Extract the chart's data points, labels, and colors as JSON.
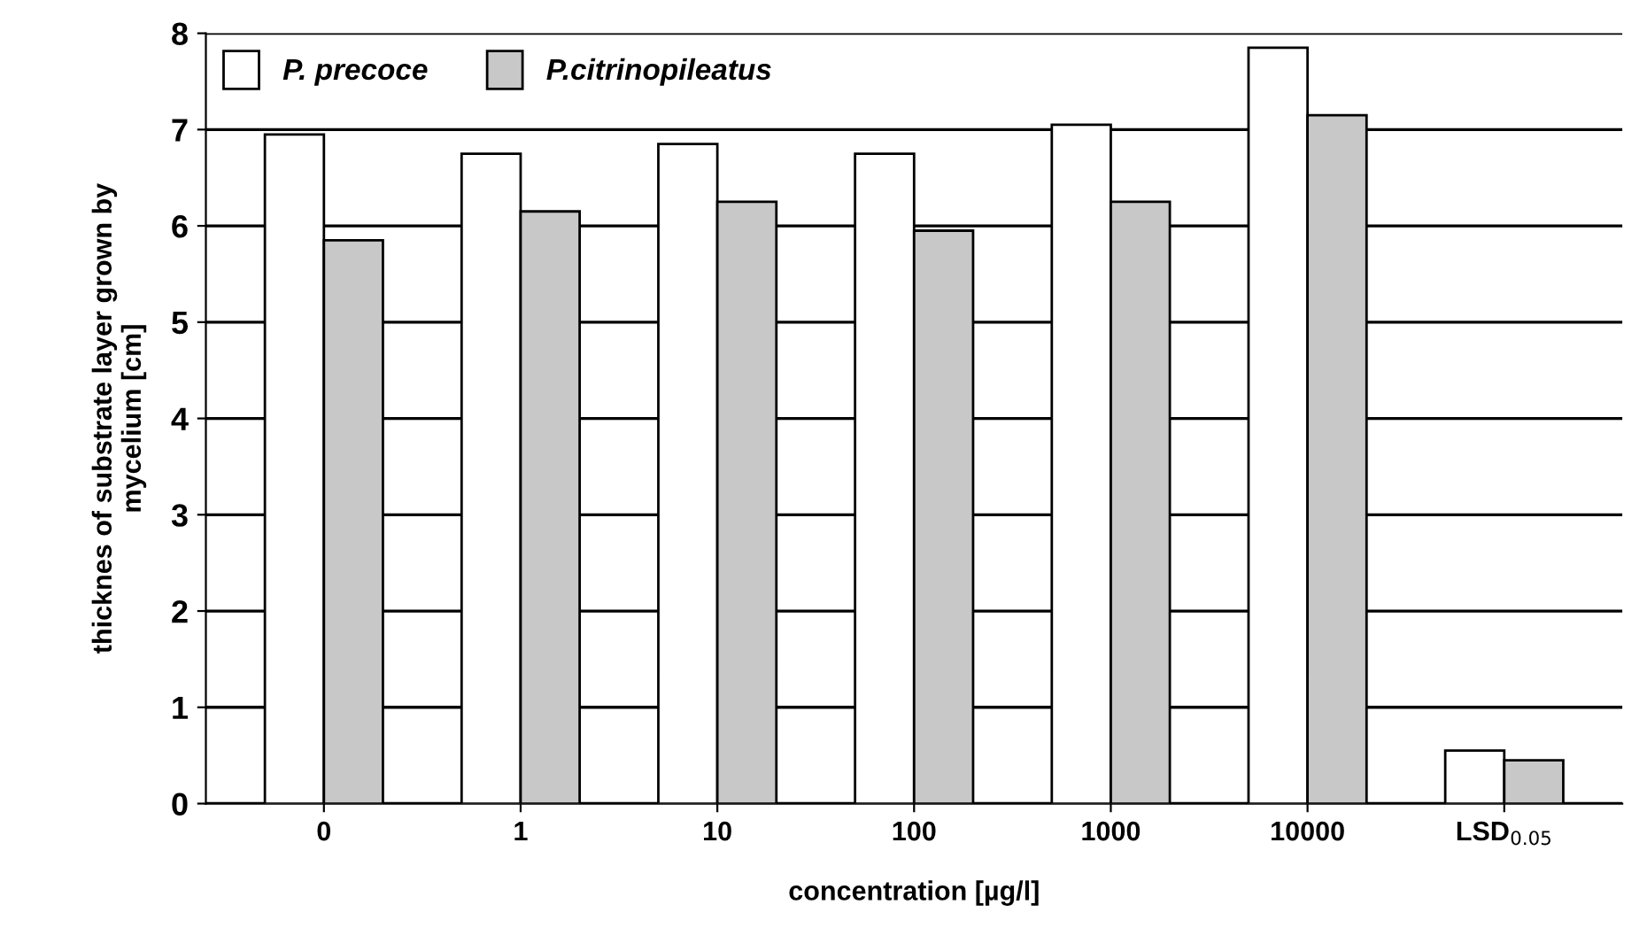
{
  "chart_data": {
    "type": "bar",
    "xlabel": "concentration [µg/l]",
    "ylabel": "thicknes of substrate layer grown by\nmycelium [cm]",
    "categories": [
      "0",
      "1",
      "10",
      "100",
      "1000",
      "10000",
      "LSD$_{0.05}$"
    ],
    "series": [
      {
        "name": "P. precoce",
        "color": "#ffffff",
        "values": [
          6.95,
          6.75,
          6.85,
          6.75,
          7.05,
          7.85,
          0.55
        ]
      },
      {
        "name": "P.citrinopileatus",
        "color": "#c8c8c8",
        "values": [
          5.85,
          6.15,
          6.25,
          5.95,
          6.25,
          7.15,
          0.45
        ]
      }
    ],
    "ylim": [
      0,
      8
    ],
    "yticks": [
      0,
      1,
      2,
      3,
      4,
      5,
      6,
      7,
      8
    ],
    "grid": "y",
    "legend": "top left"
  }
}
